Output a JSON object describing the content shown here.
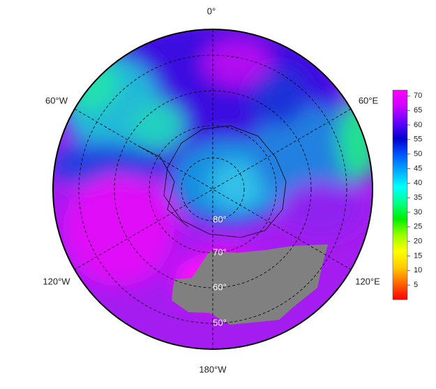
{
  "map": {
    "longitude_labels": [
      "0°",
      "60°E",
      "120°E",
      "180°W",
      "120°W",
      "60°W"
    ],
    "latitude_labels": [
      "80°",
      "70°",
      "60°",
      "50°"
    ],
    "colorbar": {
      "clim": [
        0,
        72
      ],
      "ticks": [
        5,
        10,
        15,
        20,
        25,
        30,
        35,
        40,
        45,
        50,
        55,
        60,
        65,
        70
      ],
      "colors": [
        "#ff0000",
        "#ff6600",
        "#ffcc00",
        "#ffff00",
        "#99ff00",
        "#00ee00",
        "#00ff88",
        "#00ffff",
        "#00aaff",
        "#0055ff",
        "#0000cc",
        "#6600ff",
        "#cc00ff",
        "#ff00ff"
      ]
    }
  }
}
